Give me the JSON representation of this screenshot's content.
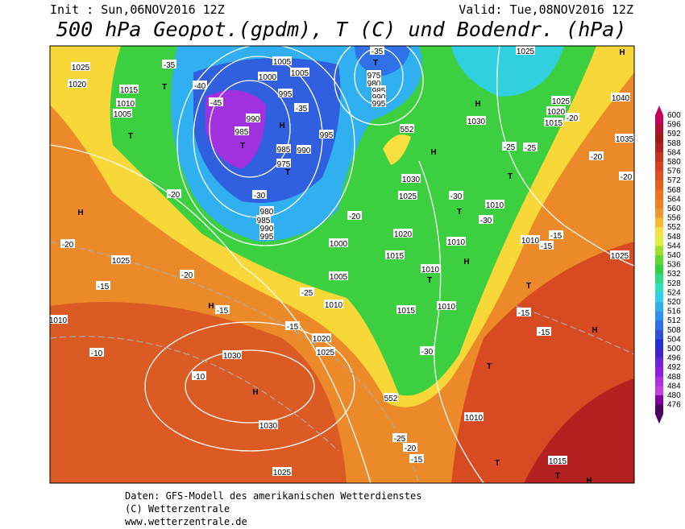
{
  "header": {
    "init": "Init : Sun,06NOV2016 12Z",
    "valid": "Valid: Tue,08NOV2016 12Z",
    "title": "500 hPa Geopot.(gpdm), T (C) und Bodendr. (hPa)"
  },
  "colorbar": {
    "values": [
      600,
      596,
      592,
      588,
      584,
      580,
      576,
      572,
      568,
      564,
      560,
      556,
      552,
      548,
      544,
      540,
      536,
      532,
      528,
      524,
      520,
      516,
      512,
      508,
      504,
      500,
      496,
      492,
      488,
      484,
      480,
      476
    ],
    "colors": [
      "#c8005a",
      "#b01030",
      "#a01818",
      "#b42020",
      "#c83020",
      "#d84020",
      "#e05020",
      "#e86020",
      "#f07020",
      "#f08020",
      "#f09830",
      "#f8b830",
      "#f8e040",
      "#e0f040",
      "#a0e030",
      "#60d830",
      "#30d040",
      "#30d880",
      "#30e0c0",
      "#30d0f0",
      "#30b0f0",
      "#3090f0",
      "#3070e8",
      "#3050e0",
      "#2030d8",
      "#4020d0",
      "#7020d8",
      "#9020e0",
      "#b030e0",
      "#c040e0",
      "#8000a0",
      "#500060"
    ]
  },
  "map_labels": [
    "1025",
    "1020",
    "1015",
    "1010",
    "1005",
    "T",
    "T",
    "-35",
    "-40",
    "-45",
    "1005",
    "1005",
    "1000",
    "995",
    "990",
    "985",
    "T",
    "H",
    "-35",
    "995",
    "985",
    "990",
    "975",
    "T",
    "-30",
    "980",
    "985",
    "990",
    "995",
    "975",
    "980",
    "985",
    "990",
    "995",
    "T",
    "-35",
    "H",
    "1030",
    "H",
    "T",
    "-25",
    "1030",
    "1025",
    "-30",
    "-20",
    "1020",
    "1010",
    "-30",
    "T",
    "1010",
    "H",
    "1000",
    "1015",
    "1010",
    "T",
    "1005",
    "-25",
    "1010",
    "1015",
    "1010",
    "-30",
    "1020",
    "1025",
    "-15",
    "1030",
    "-10",
    "H",
    "1030",
    "1025",
    "H",
    "-15",
    "1025",
    "-20",
    "-15",
    "-10",
    "H",
    "-20",
    "-20",
    "1010",
    "T",
    "-15",
    "-15",
    "H",
    "T",
    "1010",
    "T",
    "1015",
    "T",
    "H",
    "-25",
    "-20",
    "-15",
    "552",
    "552",
    "1025",
    "H",
    "1040",
    "1025",
    "1020",
    "1015",
    "-20",
    "-25",
    "1035",
    "-20",
    "-20",
    "1010",
    "-15",
    "-15",
    "1025"
  ],
  "footer": [
    "Daten: GFS-Modell des amerikanischen Wetterdienstes",
    "(C) Wetterzentrale",
    "www.wetterzentrale.de"
  ]
}
